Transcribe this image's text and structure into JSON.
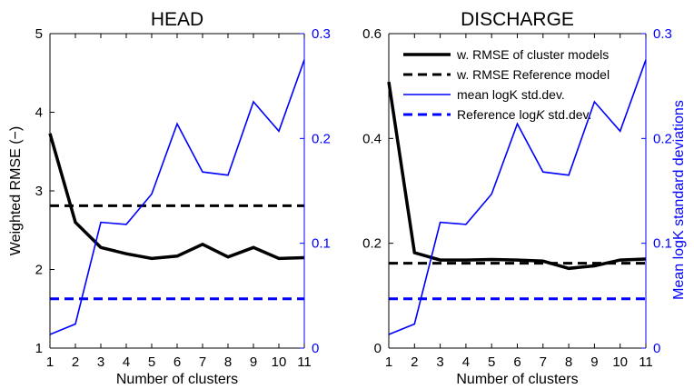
{
  "chart_data": [
    {
      "type": "line",
      "title": "HEAD",
      "xlabel": "Number of clusters",
      "ylabel": "Weighted RMSE (−)",
      "y2label": "",
      "x": [
        1,
        2,
        3,
        4,
        5,
        6,
        7,
        8,
        9,
        10,
        11
      ],
      "xlim": [
        1,
        11
      ],
      "ylim": [
        1,
        5
      ],
      "y2lim": [
        0,
        0.3
      ],
      "xticks": [
        "1",
        "2",
        "3",
        "4",
        "5",
        "6",
        "7",
        "8",
        "9",
        "10",
        "11"
      ],
      "yticks": [
        "1",
        "2",
        "3",
        "4",
        "5"
      ],
      "y2ticks": [
        "0",
        "0.1",
        "0.2",
        "0.3"
      ],
      "series": [
        {
          "name": "w. RMSE of cluster models",
          "axis": "left",
          "style": "solid-thick",
          "color": "#000000",
          "values": [
            3.73,
            2.6,
            2.28,
            2.2,
            2.14,
            2.17,
            2.32,
            2.16,
            2.28,
            2.14,
            2.15
          ]
        },
        {
          "name": "w. RMSE Reference model",
          "axis": "left",
          "style": "dashed",
          "color": "#000000",
          "values": [
            2.81,
            2.81,
            2.81,
            2.81,
            2.81,
            2.81,
            2.81,
            2.81,
            2.81,
            2.81,
            2.81
          ]
        },
        {
          "name": "mean logK std.dev.",
          "axis": "right",
          "style": "solid-thin",
          "color": "#0000ff",
          "values": [
            0.013,
            0.023,
            0.12,
            0.118,
            0.147,
            0.214,
            0.168,
            0.165,
            0.235,
            0.207,
            0.275
          ]
        },
        {
          "name": "Reference logK std.dev.",
          "axis": "right",
          "style": "dashed",
          "color": "#0000ff",
          "values": [
            0.047,
            0.047,
            0.047,
            0.047,
            0.047,
            0.047,
            0.047,
            0.047,
            0.047,
            0.047,
            0.047
          ]
        }
      ]
    },
    {
      "type": "line",
      "title": "DISCHARGE",
      "xlabel": "Number of clusters",
      "ylabel": "",
      "y2label": "Mean logK standard deviations",
      "x": [
        1,
        2,
        3,
        4,
        5,
        6,
        7,
        8,
        9,
        10,
        11
      ],
      "xlim": [
        1,
        11
      ],
      "ylim": [
        0,
        0.6
      ],
      "y2lim": [
        0,
        0.3
      ],
      "xticks": [
        "1",
        "2",
        "3",
        "4",
        "5",
        "6",
        "7",
        "8",
        "9",
        "10",
        "11"
      ],
      "yticks": [
        "0",
        "0.2",
        "0.4",
        "0.6"
      ],
      "y2ticks": [
        "0",
        "0.1",
        "0.2",
        "0.3"
      ],
      "legend": {
        "position": "top-right",
        "entries": [
          {
            "label": "w. RMSE of cluster models",
            "style": "solid-thick",
            "color": "#000000"
          },
          {
            "label": "w. RMSE Reference model",
            "style": "dashed",
            "color": "#000000"
          },
          {
            "label": "mean logK std.dev.",
            "style": "solid-thin",
            "color": "#0000ff"
          },
          {
            "label_prefix": "Reference log",
            "label_italic": "K",
            "label_suffix": " std.dev.",
            "style": "dashed",
            "color": "#0000ff"
          }
        ]
      },
      "series": [
        {
          "name": "w. RMSE of cluster models",
          "axis": "left",
          "style": "solid-thick",
          "color": "#000000",
          "values": [
            0.508,
            0.182,
            0.168,
            0.168,
            0.169,
            0.168,
            0.166,
            0.152,
            0.157,
            0.168,
            0.17
          ]
        },
        {
          "name": "w. RMSE Reference model",
          "axis": "left",
          "style": "dashed",
          "color": "#000000",
          "values": [
            0.162,
            0.162,
            0.162,
            0.162,
            0.162,
            0.162,
            0.162,
            0.162,
            0.162,
            0.162,
            0.162
          ]
        },
        {
          "name": "mean logK std.dev.",
          "axis": "right",
          "style": "solid-thin",
          "color": "#0000ff",
          "values": [
            0.013,
            0.023,
            0.12,
            0.118,
            0.147,
            0.214,
            0.168,
            0.165,
            0.235,
            0.207,
            0.275
          ]
        },
        {
          "name": "Reference logK std.dev.",
          "axis": "right",
          "style": "dashed",
          "color": "#0000ff",
          "values": [
            0.047,
            0.047,
            0.047,
            0.047,
            0.047,
            0.047,
            0.047,
            0.047,
            0.047,
            0.047,
            0.047
          ]
        }
      ]
    }
  ]
}
